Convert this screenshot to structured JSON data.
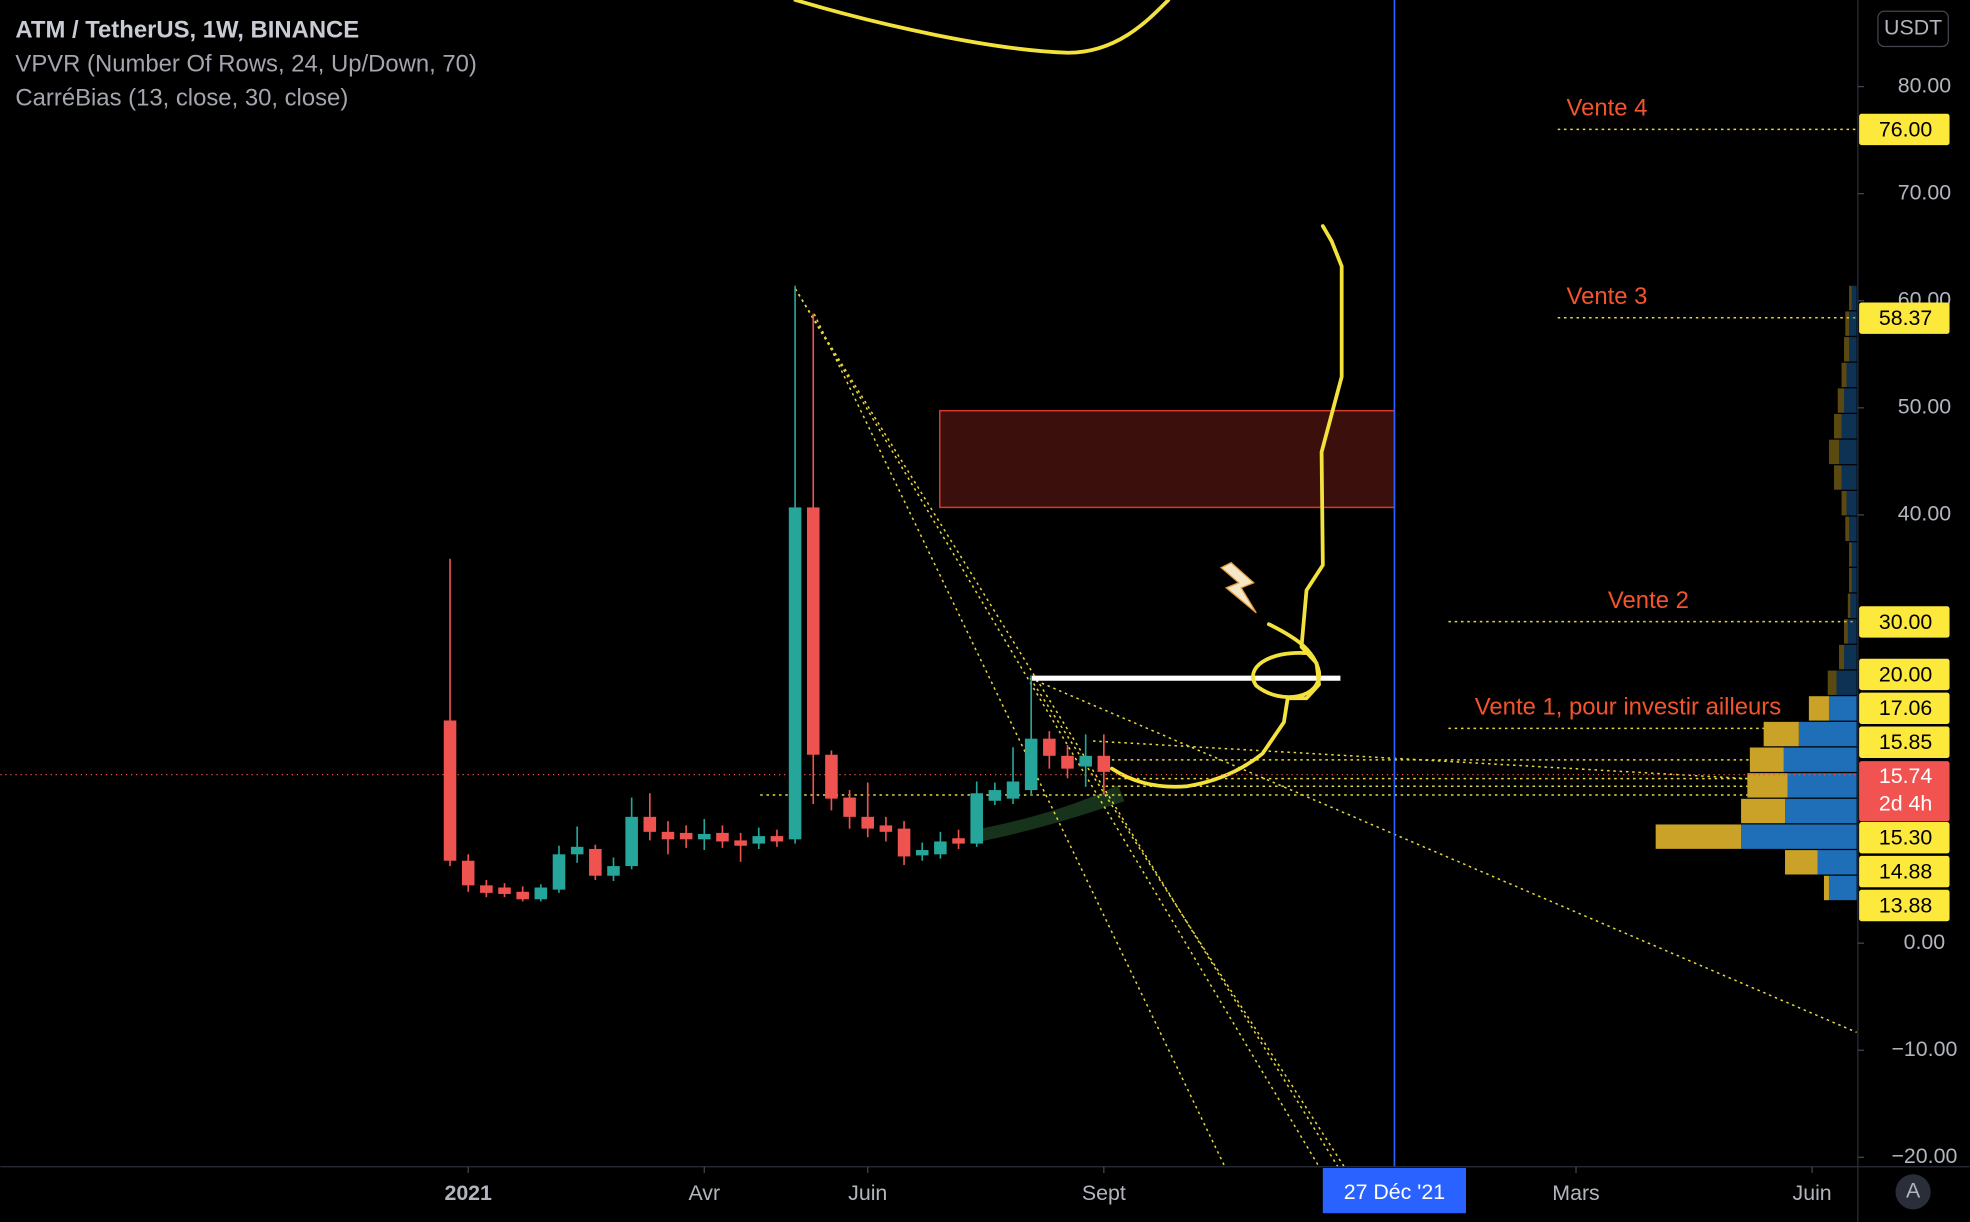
{
  "header": {
    "symbol": "ATM / TetherUS, 1W, BINANCE",
    "indicators": [
      "VPVR (Number Of Rows, 24, Up/Down, 70)",
      "CarréBias (13, close, 30, close)"
    ],
    "currency": "USDT",
    "auto_scale": "A"
  },
  "chart_data": {
    "type": "candlestick",
    "open": [
      20.8,
      7.7,
      5.4,
      5.2,
      4.8,
      4.1,
      5.0,
      8.3,
      8.8,
      6.3,
      7.2,
      11.8,
      10.4,
      10.3,
      9.7,
      10.3,
      9.6,
      9.3,
      10.0,
      9.7,
      40.7,
      17.6,
      13.6,
      11.8,
      11.0,
      10.7,
      8.2,
      8.3,
      9.8,
      9.3,
      13.3,
      13.5,
      14.3,
      19.1,
      17.5,
      16.5,
      17.5
    ],
    "high": [
      35.9,
      8.3,
      5.9,
      5.6,
      5.3,
      5.5,
      9.1,
      10.9,
      9.2,
      8.0,
      13.6,
      14.0,
      11.4,
      11.0,
      11.6,
      11.0,
      10.3,
      10.8,
      10.6,
      61.4,
      58.8,
      18.0,
      14.3,
      15.0,
      11.8,
      11.4,
      9.4,
      10.4,
      10.6,
      15.1,
      15.0,
      18.3,
      25.0,
      19.8,
      18.5,
      19.5,
      19.5
    ],
    "low": [
      7.2,
      4.8,
      4.3,
      4.3,
      3.9,
      3.9,
      4.7,
      7.5,
      5.9,
      5.8,
      6.9,
      9.6,
      8.3,
      8.9,
      8.7,
      8.9,
      7.6,
      8.8,
      9.0,
      9.3,
      13.0,
      12.4,
      10.7,
      9.9,
      9.5,
      7.3,
      7.7,
      7.9,
      8.8,
      9.0,
      12.9,
      13.0,
      13.8,
      16.3,
      15.4,
      14.6,
      13.9
    ],
    "close": [
      7.7,
      5.4,
      4.7,
      4.6,
      4.1,
      5.2,
      8.3,
      9.0,
      6.3,
      7.2,
      11.8,
      10.4,
      9.7,
      9.7,
      10.2,
      9.5,
      9.1,
      10.0,
      9.5,
      40.7,
      17.6,
      13.5,
      11.8,
      10.7,
      10.4,
      8.1,
      8.7,
      9.5,
      9.3,
      14.0,
      14.3,
      15.1,
      19.1,
      17.5,
      16.3,
      17.5,
      16.0
    ],
    "up_color": "#26a69a",
    "down_color": "#ef5350",
    "xlim": [
      -24.76,
      77.45
    ],
    "ylim": [
      -20.88,
      88.09
    ],
    "xticks": [
      {
        "value": 1,
        "label": "2021"
      },
      {
        "value": 14,
        "label": "Avr"
      },
      {
        "value": 23,
        "label": "Juin"
      },
      {
        "value": 36,
        "label": "Sept"
      },
      {
        "value": 62,
        "label": "Mars"
      },
      {
        "value": 75,
        "label": "Juin"
      }
    ],
    "yticks": [
      {
        "value": 80,
        "label": "80.00"
      },
      {
        "value": 70,
        "label": "70.00"
      },
      {
        "value": 60,
        "label": "60.00"
      },
      {
        "value": 50,
        "label": "50.00"
      },
      {
        "value": 40,
        "label": "40.00"
      },
      {
        "value": 0,
        "label": "0.00"
      },
      {
        "value": -10,
        "label": "−10.00"
      },
      {
        "value": -20,
        "label": "−20.00"
      }
    ],
    "crosshair_x": {
      "value": 52,
      "label": "27 Déc '21"
    },
    "last_price": {
      "value": 15.74,
      "label": "15.74"
    },
    "countdown": "2d 4h",
    "price_labels": [
      {
        "value": 76,
        "label": "76.00"
      },
      {
        "value": 58.37,
        "label": "58.37"
      },
      {
        "value": 30,
        "label": "30.00"
      },
      {
        "value": 20,
        "label": "20.00"
      },
      {
        "value": 17.06,
        "label": "17.06"
      },
      {
        "value": 15.85,
        "label": "15.85"
      },
      {
        "value": 15.3,
        "label": "15.30"
      },
      {
        "value": 14.88,
        "label": "14.88"
      },
      {
        "value": 13.88,
        "label": "13.88"
      }
    ],
    "annotations": [
      "Vente 4",
      "Vente 3",
      "Vente 2",
      "Vente 1, pour investir ailleurs"
    ],
    "volume_profile": {
      "up_color": "#1f6fb8",
      "down_color": "#c9a227",
      "up": [
        22,
        31,
        92,
        57,
        55,
        58,
        46,
        22,
        16,
        10,
        7,
        5,
        4,
        4,
        6,
        8,
        12,
        14,
        12,
        10,
        8,
        6,
        6,
        4
      ],
      "down": [
        4,
        26,
        68,
        35,
        32,
        27,
        28,
        16,
        7,
        4,
        3,
        2,
        2,
        2,
        3,
        4,
        6,
        8,
        6,
        5,
        4,
        4,
        3,
        2
      ]
    }
  }
}
